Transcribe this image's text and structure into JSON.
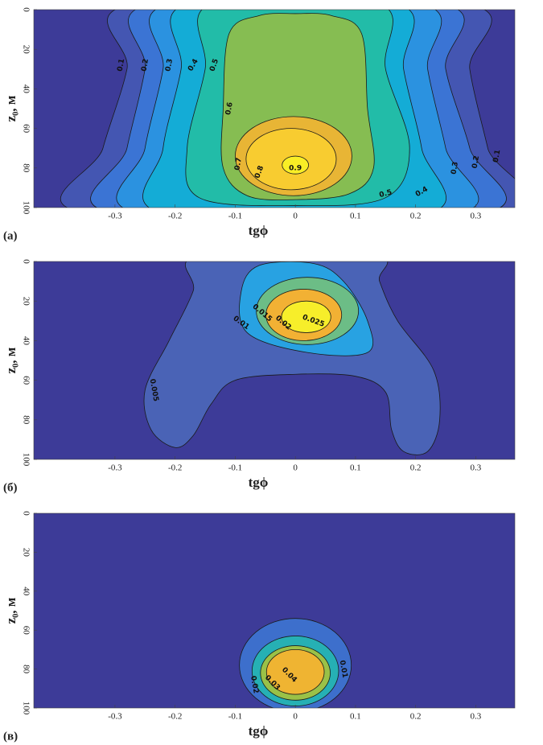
{
  "chart_data": [
    {
      "type": "contour",
      "panel_label": "(а)",
      "xlabel": "tgϕ",
      "ylabel": "z₀, м",
      "xlim": [
        -0.435,
        0.365
      ],
      "ylim": [
        100,
        0
      ],
      "xticks": [
        -0.3,
        -0.2,
        -0.1,
        0,
        0.1,
        0.2,
        0.3
      ],
      "yticks": [
        0,
        20,
        40,
        60,
        80,
        100
      ],
      "levels": [
        0.1,
        0.2,
        0.3,
        0.4,
        0.5,
        0.6,
        0.7,
        0.8,
        0.9
      ],
      "background_color": "#3d3b98",
      "colors": [
        "#4456b2",
        "#3b74d4",
        "#2b92e0",
        "#14acd6",
        "#22bca8",
        "#86bd52",
        "#e8b535",
        "#f8cc30",
        "#f9ee26"
      ]
    },
    {
      "type": "contour",
      "panel_label": "(б)",
      "xlabel": "tgϕ",
      "ylabel": "z₀, м",
      "xlim": [
        -0.435,
        0.365
      ],
      "ylim": [
        100,
        0
      ],
      "xticks": [
        -0.3,
        -0.2,
        -0.1,
        0,
        0.1,
        0.2,
        0.3
      ],
      "yticks": [
        0,
        20,
        40,
        60,
        80,
        100
      ],
      "levels": [
        0.005,
        0.01,
        0.015,
        0.02,
        0.025
      ],
      "background_color": "#3d3b98",
      "colors": [
        "#4a63b6",
        "#28a2e2",
        "#6cbd86",
        "#f2b134",
        "#f7ee2a"
      ]
    },
    {
      "type": "contour",
      "panel_label": "(в)",
      "xlabel": "tgϕ",
      "ylabel": "z₀, м",
      "xlim": [
        -0.435,
        0.365
      ],
      "ylim": [
        100,
        0
      ],
      "xticks": [
        -0.3,
        -0.2,
        -0.1,
        0,
        0.1,
        0.2,
        0.3
      ],
      "yticks": [
        0,
        20,
        40,
        60,
        80,
        100
      ],
      "levels": [
        0.01,
        0.02,
        0.03,
        0.04
      ],
      "background_color": "#3d3b98",
      "colors": [
        "#3d6fcc",
        "#26b0b4",
        "#9ac147",
        "#efb432"
      ]
    }
  ]
}
